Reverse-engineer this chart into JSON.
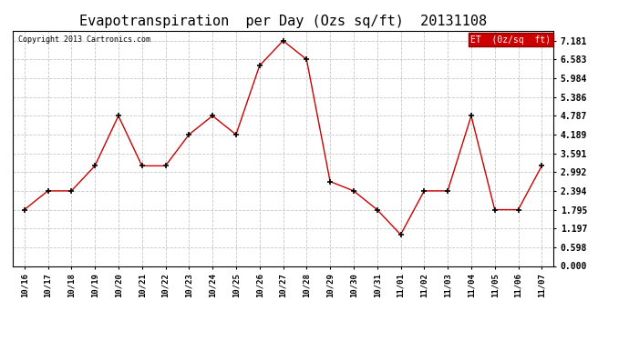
{
  "title": "Evapotranspiration  per Day (Ozs sq/ft)  20131108",
  "copyright": "Copyright 2013 Cartronics.com",
  "legend_label": "ET  (0z/sq  ft)",
  "x_labels": [
    "10/16",
    "10/17",
    "10/18",
    "10/19",
    "10/20",
    "10/21",
    "10/22",
    "10/23",
    "10/24",
    "10/25",
    "10/26",
    "10/27",
    "10/28",
    "10/29",
    "10/30",
    "10/31",
    "11/01",
    "11/02",
    "11/03",
    "11/04",
    "11/05",
    "11/06",
    "11/07"
  ],
  "y_values": [
    1.795,
    2.394,
    2.394,
    3.192,
    4.787,
    3.192,
    3.192,
    4.189,
    4.787,
    4.189,
    6.384,
    7.181,
    6.583,
    2.693,
    2.394,
    1.795,
    1.0,
    2.394,
    2.394,
    4.787,
    1.795,
    1.795,
    3.192
  ],
  "line_color": "#cc0000",
  "marker_color": "#000000",
  "bg_color": "#ffffff",
  "grid_color": "#c0c0c0",
  "title_fontsize": 11,
  "y_tick_values": [
    0.0,
    0.598,
    1.197,
    1.795,
    2.394,
    2.992,
    3.591,
    4.189,
    4.787,
    5.386,
    5.984,
    6.583,
    7.181
  ],
  "legend_bg": "#cc0000",
  "legend_text_color": "#ffffff",
  "ylim_max": 7.5
}
